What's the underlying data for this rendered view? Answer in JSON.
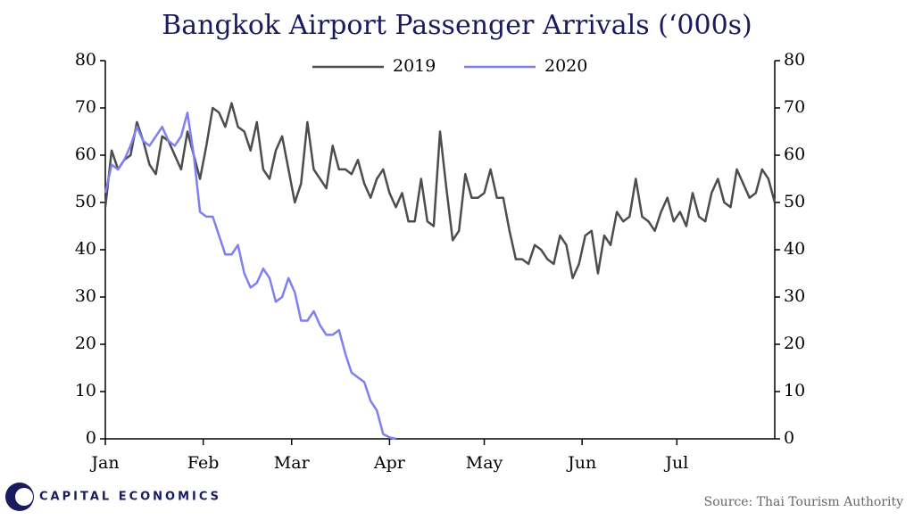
{
  "chart_data": {
    "type": "line",
    "title": "Bangkok Airport Passenger Arrivals (‘000s)",
    "source": "Source: Thai Tourism Authority",
    "brand": "CAPITAL ECONOMICS",
    "x": [
      0,
      2,
      4,
      6,
      8,
      10,
      12,
      14,
      16,
      18,
      20,
      22,
      24,
      26,
      28,
      30,
      32,
      34,
      36,
      38,
      40,
      42,
      44,
      46,
      48,
      50,
      52,
      54,
      56,
      58,
      60,
      62,
      64,
      66,
      68,
      70,
      72,
      74,
      76,
      78,
      80,
      82,
      84,
      86,
      88,
      90,
      92,
      94,
      96,
      98,
      100,
      102,
      104,
      106,
      108,
      110,
      112,
      114,
      116,
      118,
      120,
      122,
      124,
      126,
      128,
      130,
      132,
      134,
      136,
      138,
      140,
      142,
      144,
      146,
      148,
      150,
      152,
      154,
      156,
      158,
      160,
      162,
      164,
      166,
      168,
      170,
      172,
      174,
      176,
      178,
      180,
      182,
      184,
      186,
      188,
      190,
      192,
      194,
      196,
      198,
      200,
      202,
      204,
      206,
      208,
      210,
      212
    ],
    "series": [
      {
        "name": "2019",
        "color": "#4d4d4d",
        "values": [
          49,
          61,
          57,
          59,
          60,
          67,
          63,
          58,
          56,
          64,
          63,
          60,
          57,
          65,
          60,
          55,
          62,
          70,
          69,
          66,
          71,
          66,
          65,
          61,
          67,
          57,
          55,
          61,
          64,
          57,
          50,
          54,
          67,
          57,
          55,
          53,
          62,
          57,
          57,
          56,
          59,
          54,
          51,
          55,
          57,
          52,
          49,
          52,
          46,
          46,
          55,
          46,
          45,
          65,
          53,
          42,
          44,
          56,
          51,
          51,
          52,
          57,
          51,
          51,
          44,
          38,
          38,
          37,
          41,
          40,
          38,
          37,
          43,
          41,
          34,
          37,
          43,
          44,
          35,
          43,
          41,
          48,
          46,
          47,
          55,
          47,
          46,
          44,
          48,
          51,
          46,
          48,
          45,
          52,
          47,
          46,
          52,
          55,
          50,
          49,
          57,
          54,
          51,
          52,
          57,
          55,
          50
        ]
      },
      {
        "name": "2020",
        "color": "#7f7ff0",
        "values": [
          52,
          58,
          57,
          59,
          62,
          66,
          63,
          62,
          64,
          66,
          63,
          62,
          64,
          69,
          60,
          48,
          47,
          47,
          43,
          39,
          39,
          41,
          35,
          32,
          33,
          36,
          34,
          29,
          30,
          34,
          31,
          25,
          25,
          27,
          24,
          22,
          22,
          23,
          18,
          14,
          13,
          12,
          8,
          6,
          1,
          0.3,
          0,
          null,
          null,
          null,
          null,
          null,
          null,
          null,
          null,
          null,
          null,
          null,
          null,
          null,
          null,
          null,
          null,
          null,
          null,
          null,
          null,
          null,
          null,
          null,
          null,
          null,
          null,
          null,
          null,
          null,
          null,
          null,
          null,
          null,
          null,
          null,
          null,
          null,
          null,
          null,
          null,
          null,
          null,
          null,
          null,
          null,
          null,
          null,
          null,
          null,
          null,
          null,
          null,
          null,
          null,
          null,
          null,
          null,
          null,
          null,
          null
        ]
      }
    ],
    "xlim": [
      0,
      212
    ],
    "xticks": [
      {
        "value": 0,
        "label": "Jan"
      },
      {
        "value": 31,
        "label": "Feb"
      },
      {
        "value": 59,
        "label": "Mar"
      },
      {
        "value": 90,
        "label": "Apr"
      },
      {
        "value": 120,
        "label": "May"
      },
      {
        "value": 151,
        "label": "Jun"
      },
      {
        "value": 181,
        "label": "Jul"
      }
    ],
    "ylim": [
      0,
      80
    ],
    "yticks": [
      0,
      10,
      20,
      30,
      40,
      50,
      60,
      70,
      80
    ],
    "legend": "top"
  }
}
